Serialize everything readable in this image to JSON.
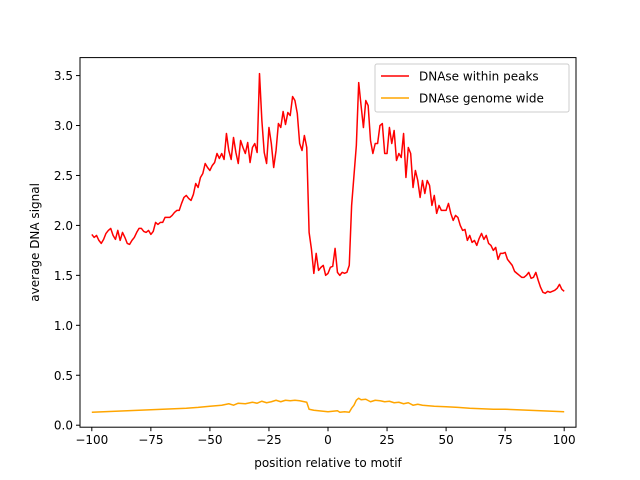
{
  "chart_data": {
    "type": "line",
    "title": "",
    "xlabel": "position relative to motif",
    "ylabel": "average DNA signal",
    "xlim": [
      -105,
      105
    ],
    "ylim": [
      -0.02,
      3.68
    ],
    "xticks": [
      -100,
      -75,
      -50,
      -25,
      0,
      25,
      50,
      75,
      100
    ],
    "xtick_labels": [
      "−100",
      "−75",
      "−50",
      "−25",
      "0",
      "25",
      "50",
      "75",
      "100"
    ],
    "yticks": [
      0.0,
      0.5,
      1.0,
      1.5,
      2.0,
      2.5,
      3.0,
      3.5
    ],
    "ytick_labels": [
      "0.0",
      "0.5",
      "1.0",
      "1.5",
      "2.0",
      "2.5",
      "3.0",
      "3.5"
    ],
    "grid": false,
    "legend_position": "top-right",
    "series": [
      {
        "name": "DNAse within peaks",
        "color": "#ff0000",
        "points": [
          [
            -100,
            1.91
          ],
          [
            -99,
            1.88
          ],
          [
            -98,
            1.9
          ],
          [
            -97,
            1.85
          ],
          [
            -96,
            1.82
          ],
          [
            -95,
            1.86
          ],
          [
            -94,
            1.92
          ],
          [
            -93,
            1.95
          ],
          [
            -92,
            1.97
          ],
          [
            -91,
            1.9
          ],
          [
            -90,
            1.86
          ],
          [
            -89,
            1.95
          ],
          [
            -88,
            1.85
          ],
          [
            -87,
            1.93
          ],
          [
            -86,
            1.88
          ],
          [
            -85,
            1.82
          ],
          [
            -84,
            1.81
          ],
          [
            -83,
            1.85
          ],
          [
            -82,
            1.88
          ],
          [
            -81,
            1.93
          ],
          [
            -80,
            1.97
          ],
          [
            -79,
            1.97
          ],
          [
            -78,
            1.94
          ],
          [
            -77,
            1.93
          ],
          [
            -76,
            1.95
          ],
          [
            -75,
            1.91
          ],
          [
            -74,
            1.94
          ],
          [
            -73,
            2.03
          ],
          [
            -72,
            2.01
          ],
          [
            -71,
            2.03
          ],
          [
            -70,
            2.03
          ],
          [
            -69,
            2.08
          ],
          [
            -68,
            2.08
          ],
          [
            -67,
            2.08
          ],
          [
            -66,
            2.1
          ],
          [
            -65,
            2.13
          ],
          [
            -64,
            2.15
          ],
          [
            -63,
            2.15
          ],
          [
            -62,
            2.22
          ],
          [
            -61,
            2.28
          ],
          [
            -60,
            2.3
          ],
          [
            -59,
            2.27
          ],
          [
            -58,
            2.25
          ],
          [
            -57,
            2.31
          ],
          [
            -56,
            2.42
          ],
          [
            -55,
            2.38
          ],
          [
            -54,
            2.48
          ],
          [
            -53,
            2.52
          ],
          [
            -52,
            2.62
          ],
          [
            -51,
            2.58
          ],
          [
            -50,
            2.55
          ],
          [
            -49,
            2.6
          ],
          [
            -48,
            2.63
          ],
          [
            -47,
            2.72
          ],
          [
            -46,
            2.67
          ],
          [
            -45,
            2.72
          ],
          [
            -44,
            2.66
          ],
          [
            -43,
            2.92
          ],
          [
            -42,
            2.75
          ],
          [
            -41,
            2.66
          ],
          [
            -40,
            2.88
          ],
          [
            -39,
            2.73
          ],
          [
            -38,
            2.62
          ],
          [
            -37,
            2.85
          ],
          [
            -36,
            2.78
          ],
          [
            -35,
            2.72
          ],
          [
            -34,
            2.83
          ],
          [
            -33,
            2.63
          ],
          [
            -32,
            2.78
          ],
          [
            -31,
            2.82
          ],
          [
            -30,
            2.73
          ],
          [
            -29,
            3.52
          ],
          [
            -28,
            3.05
          ],
          [
            -27,
            2.73
          ],
          [
            -26,
            2.62
          ],
          [
            -25,
            2.98
          ],
          [
            -24,
            2.82
          ],
          [
            -23,
            2.58
          ],
          [
            -22,
            2.75
          ],
          [
            -21,
            3.02
          ],
          [
            -20,
            2.98
          ],
          [
            -19,
            3.14
          ],
          [
            -18,
            3.01
          ],
          [
            -17,
            3.13
          ],
          [
            -16,
            3.1
          ],
          [
            -15,
            3.29
          ],
          [
            -14,
            3.25
          ],
          [
            -13,
            3.12
          ],
          [
            -12,
            2.82
          ],
          [
            -11,
            2.75
          ],
          [
            -10,
            2.9
          ],
          [
            -9,
            2.78
          ],
          [
            -8,
            1.93
          ],
          [
            -7,
            1.76
          ],
          [
            -6,
            1.52
          ],
          [
            -5,
            1.72
          ],
          [
            -4,
            1.55
          ],
          [
            -3,
            1.58
          ],
          [
            -2,
            1.6
          ],
          [
            -1,
            1.5
          ],
          [
            0,
            1.52
          ],
          [
            1,
            1.58
          ],
          [
            2,
            1.59
          ],
          [
            3,
            1.77
          ],
          [
            4,
            1.53
          ],
          [
            5,
            1.5
          ],
          [
            6,
            1.53
          ],
          [
            7,
            1.52
          ],
          [
            8,
            1.53
          ],
          [
            9,
            1.6
          ],
          [
            10,
            2.2
          ],
          [
            11,
            2.5
          ],
          [
            12,
            2.8
          ],
          [
            13,
            3.43
          ],
          [
            14,
            3.2
          ],
          [
            15,
            2.98
          ],
          [
            16,
            3.25
          ],
          [
            17,
            3.2
          ],
          [
            18,
            2.85
          ],
          [
            19,
            2.72
          ],
          [
            20,
            2.82
          ],
          [
            21,
            2.82
          ],
          [
            22,
            3.0
          ],
          [
            23,
            3.02
          ],
          [
            24,
            2.72
          ],
          [
            25,
            2.72
          ],
          [
            26,
            2.98
          ],
          [
            27,
            2.82
          ],
          [
            28,
            2.95
          ],
          [
            29,
            2.65
          ],
          [
            30,
            2.72
          ],
          [
            31,
            2.68
          ],
          [
            32,
            2.92
          ],
          [
            33,
            2.48
          ],
          [
            34,
            2.78
          ],
          [
            35,
            2.72
          ],
          [
            36,
            2.38
          ],
          [
            37,
            2.55
          ],
          [
            38,
            2.45
          ],
          [
            39,
            2.28
          ],
          [
            40,
            2.45
          ],
          [
            41,
            2.32
          ],
          [
            42,
            2.45
          ],
          [
            43,
            2.4
          ],
          [
            44,
            2.2
          ],
          [
            45,
            2.3
          ],
          [
            46,
            2.12
          ],
          [
            47,
            2.2
          ],
          [
            48,
            2.15
          ],
          [
            49,
            2.15
          ],
          [
            50,
            2.15
          ],
          [
            51,
            2.22
          ],
          [
            52,
            2.12
          ],
          [
            53,
            2.05
          ],
          [
            54,
            2.1
          ],
          [
            55,
            2.08
          ],
          [
            56,
            2.0
          ],
          [
            57,
            1.95
          ],
          [
            58,
            1.96
          ],
          [
            59,
            1.85
          ],
          [
            60,
            1.9
          ],
          [
            61,
            1.83
          ],
          [
            62,
            1.85
          ],
          [
            63,
            1.8
          ],
          [
            64,
            1.87
          ],
          [
            65,
            1.92
          ],
          [
            66,
            1.86
          ],
          [
            67,
            1.9
          ],
          [
            68,
            1.82
          ],
          [
            69,
            1.8
          ],
          [
            70,
            1.75
          ],
          [
            71,
            1.78
          ],
          [
            72,
            1.66
          ],
          [
            73,
            1.72
          ],
          [
            74,
            1.72
          ],
          [
            75,
            1.73
          ],
          [
            76,
            1.66
          ],
          [
            77,
            1.63
          ],
          [
            78,
            1.6
          ],
          [
            79,
            1.54
          ],
          [
            80,
            1.52
          ],
          [
            81,
            1.5
          ],
          [
            82,
            1.48
          ],
          [
            83,
            1.48
          ],
          [
            84,
            1.5
          ],
          [
            85,
            1.53
          ],
          [
            86,
            1.47
          ],
          [
            87,
            1.48
          ],
          [
            88,
            1.53
          ],
          [
            89,
            1.45
          ],
          [
            90,
            1.38
          ],
          [
            91,
            1.33
          ],
          [
            92,
            1.32
          ],
          [
            93,
            1.34
          ],
          [
            94,
            1.33
          ],
          [
            95,
            1.34
          ],
          [
            96,
            1.35
          ],
          [
            97,
            1.37
          ],
          [
            98,
            1.41
          ],
          [
            99,
            1.36
          ],
          [
            100,
            1.34
          ]
        ]
      },
      {
        "name": "DNAse genome wide",
        "color": "#ffa500",
        "points": [
          [
            -100,
            0.13
          ],
          [
            -95,
            0.135
          ],
          [
            -90,
            0.14
          ],
          [
            -85,
            0.145
          ],
          [
            -80,
            0.15
          ],
          [
            -75,
            0.155
          ],
          [
            -70,
            0.16
          ],
          [
            -65,
            0.165
          ],
          [
            -60,
            0.17
          ],
          [
            -55,
            0.178
          ],
          [
            -50,
            0.19
          ],
          [
            -45,
            0.2
          ],
          [
            -42,
            0.215
          ],
          [
            -40,
            0.2
          ],
          [
            -38,
            0.22
          ],
          [
            -35,
            0.215
          ],
          [
            -32,
            0.23
          ],
          [
            -30,
            0.22
          ],
          [
            -28,
            0.24
          ],
          [
            -26,
            0.225
          ],
          [
            -24,
            0.235
          ],
          [
            -22,
            0.25
          ],
          [
            -20,
            0.235
          ],
          [
            -18,
            0.25
          ],
          [
            -16,
            0.245
          ],
          [
            -14,
            0.25
          ],
          [
            -12,
            0.245
          ],
          [
            -10,
            0.235
          ],
          [
            -9,
            0.23
          ],
          [
            -8,
            0.16
          ],
          [
            -6,
            0.15
          ],
          [
            -4,
            0.145
          ],
          [
            -2,
            0.14
          ],
          [
            0,
            0.135
          ],
          [
            2,
            0.14
          ],
          [
            4,
            0.145
          ],
          [
            5,
            0.13
          ],
          [
            7,
            0.135
          ],
          [
            9,
            0.13
          ],
          [
            10,
            0.17
          ],
          [
            11,
            0.2
          ],
          [
            12,
            0.25
          ],
          [
            13,
            0.27
          ],
          [
            14,
            0.255
          ],
          [
            16,
            0.26
          ],
          [
            18,
            0.235
          ],
          [
            20,
            0.25
          ],
          [
            22,
            0.245
          ],
          [
            24,
            0.235
          ],
          [
            26,
            0.24
          ],
          [
            28,
            0.225
          ],
          [
            30,
            0.23
          ],
          [
            32,
            0.215
          ],
          [
            34,
            0.225
          ],
          [
            36,
            0.2
          ],
          [
            38,
            0.21
          ],
          [
            40,
            0.2
          ],
          [
            45,
            0.19
          ],
          [
            50,
            0.185
          ],
          [
            55,
            0.178
          ],
          [
            60,
            0.17
          ],
          [
            65,
            0.165
          ],
          [
            70,
            0.16
          ],
          [
            75,
            0.16
          ],
          [
            80,
            0.155
          ],
          [
            85,
            0.15
          ],
          [
            90,
            0.145
          ],
          [
            95,
            0.14
          ],
          [
            100,
            0.135
          ]
        ]
      }
    ]
  }
}
